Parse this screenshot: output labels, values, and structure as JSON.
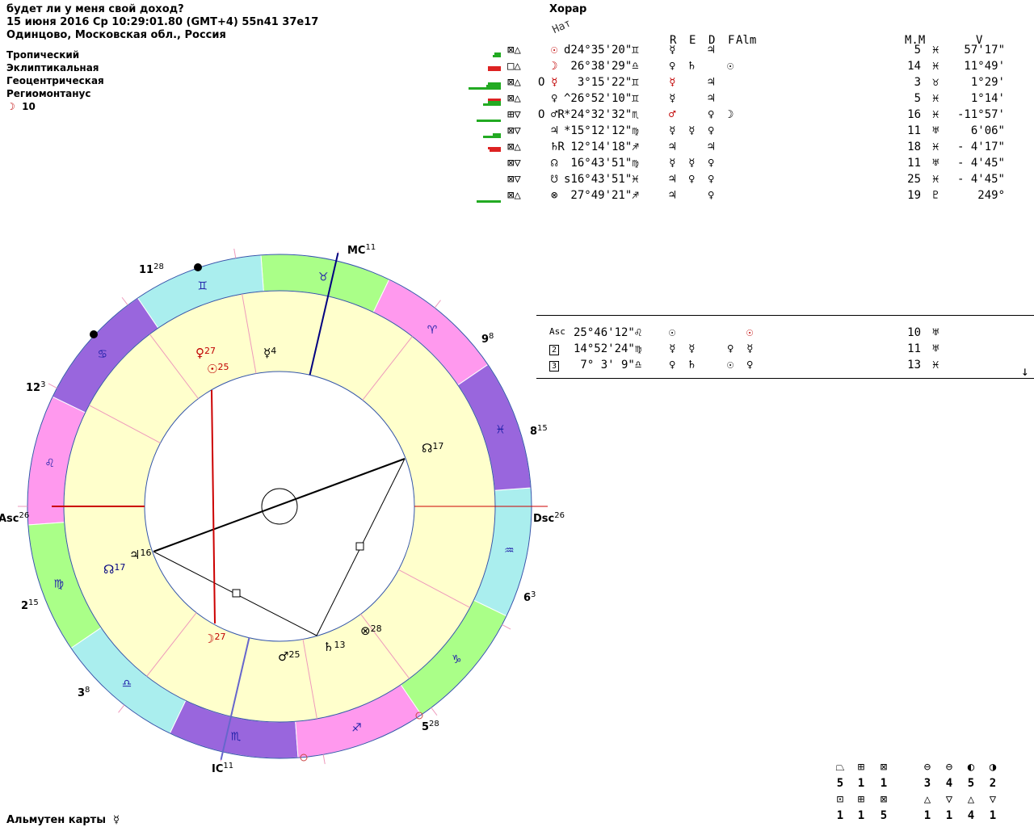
{
  "header": {
    "question": "будет ли у меня свой доход?",
    "datetime": "15 июня 2016  Ср  10:29:01.80 (GMT+4) 55n41  37e17",
    "place": "Одинцово, Московская обл., Россия"
  },
  "system": {
    "zodiac": "Тропический",
    "coords": "Эклиптикальная",
    "center": "Геоцентрическая",
    "houses": "Региомонтанус",
    "moon_glyph": "☽",
    "moon_value": "10"
  },
  "table": {
    "title": "Хорар",
    "nat_label": "Нат",
    "col_r": "R",
    "col_e": "E",
    "col_d": "D",
    "col_f": "F",
    "col_alm": "Alm",
    "col_mm": "M.M",
    "col_v": "V",
    "rows": [
      {
        "asp": "⊠△",
        "o": "",
        "glyph": "☉",
        "pos": "d24°35'20\"♊",
        "r": "☿",
        "e": "",
        "d": "♃",
        "f": "",
        "alm": "",
        "mm": "5",
        "vsign": "♓",
        "v": "57'17\""
      },
      {
        "asp": "□△",
        "o": "",
        "glyph": "☽",
        "pos": " 26°38'29\"♎",
        "r": "♀",
        "e": "♄",
        "d": "",
        "f": "☉",
        "alm": "",
        "mm": "14",
        "vsign": "♓",
        "v": "11°49'"
      },
      {
        "asp": "⊠△",
        "o": "O",
        "glyph": "☿",
        "pos": "  3°15'22\"♊",
        "r": "☿",
        "e": "",
        "d": "♃",
        "f": "",
        "alm": "",
        "mm": "3",
        "vsign": "♉",
        "v": "1°29'"
      },
      {
        "asp": "⊠△",
        "o": "",
        "glyph": "♀",
        "pos": "^26°52'10\"♊",
        "r": "☿",
        "e": "",
        "d": "♃",
        "f": "",
        "alm": "",
        "mm": "5",
        "vsign": "♓",
        "v": "1°14'"
      },
      {
        "asp": "⊞▽",
        "o": "O",
        "glyph": "♂R",
        "pos": "*24°32'32\"♏",
        "r": "♂",
        "e": "",
        "d": "♀",
        "f": "☽",
        "alm": "",
        "mm": "16",
        "vsign": "♓",
        "v": "-11°57'"
      },
      {
        "asp": "⊠▽",
        "o": "",
        "glyph": "♃",
        "pos": "*15°12'12\"♍",
        "r": "☿",
        "e": "☿",
        "d": "♀",
        "f": "",
        "alm": "",
        "mm": "11",
        "vsign": "♅",
        "v": "6'06\""
      },
      {
        "asp": "⊠△",
        "o": "",
        "glyph": "♄R",
        "pos": " 12°14'18\"♐",
        "r": "♃",
        "e": "",
        "d": "♃",
        "f": "",
        "alm": "",
        "mm": "18",
        "vsign": "♓",
        "v": "- 4'17\""
      },
      {
        "asp": "⊠▽",
        "o": "",
        "glyph": "☊",
        "pos": " 16°43'51\"♍",
        "r": "☿",
        "e": "☿",
        "d": "♀",
        "f": "",
        "alm": "",
        "mm": "11",
        "vsign": "♅",
        "v": "- 4'45\""
      },
      {
        "asp": "⊠▽",
        "o": "",
        "glyph": "☋",
        "pos": "s16°43'51\"♓",
        "r": "♃",
        "e": "♀",
        "d": "♀",
        "f": "",
        "alm": "",
        "mm": "25",
        "vsign": "♓",
        "v": "- 4'45\""
      },
      {
        "asp": "⊠△",
        "o": "",
        "glyph": "⊗",
        "pos": " 27°49'21\"♐",
        "r": "♃",
        "e": "",
        "d": "♀",
        "f": "",
        "alm": "",
        "mm": "19",
        "vsign": "♇",
        "v": "249°"
      }
    ],
    "cusps": [
      {
        "label": "Asc",
        "pos": "25°46'12\"♌",
        "r": "☉",
        "e": "",
        "d": "",
        "f": "☉",
        "mm": "10",
        "vsign": "♅"
      },
      {
        "label": "2",
        "pos": "14°52'24\"♍",
        "r": "☿",
        "e": "☿",
        "d": "♀",
        "f": "☿",
        "mm": "11",
        "vsign": "♅"
      },
      {
        "label": "3",
        "pos": " 7° 3' 9\"♎",
        "r": "♀",
        "e": "♄",
        "d": "☉",
        "f": "♀",
        "mm": "13",
        "vsign": "♓"
      }
    ],
    "arrow": "↓"
  },
  "bars": [
    {
      "green": [
        10,
        8
      ],
      "red": []
    },
    {
      "green": [],
      "red": [
        16,
        16
      ]
    },
    {
      "green": [
        40,
        18,
        16
      ],
      "red": []
    },
    {
      "green": [
        22,
        16
      ],
      "red": [
        16
      ]
    },
    {
      "green": [
        30
      ],
      "red": []
    },
    {
      "green": [
        22,
        10
      ],
      "red": []
    },
    {
      "green": [],
      "red": [
        16,
        14
      ]
    },
    {
      "green": [],
      "red": []
    },
    {
      "green": [],
      "red": []
    },
    {
      "green": [
        30
      ],
      "red": []
    }
  ],
  "wheel": {
    "house_labels": [
      {
        "name": "MC",
        "sup": "11"
      },
      {
        "name": "11",
        "sup": "28"
      },
      {
        "name": "9",
        "sup": "8"
      },
      {
        "name": "12",
        "sup": "3"
      },
      {
        "name": "8",
        "sup": "15"
      },
      {
        "name": "Asc",
        "sup": "26"
      },
      {
        "name": "Dsc",
        "sup": "26"
      },
      {
        "name": "2",
        "sup": "15"
      },
      {
        "name": "6",
        "sup": "3"
      },
      {
        "name": "3",
        "sup": "8"
      },
      {
        "name": "IC",
        "sup": "11"
      },
      {
        "name": "5",
        "sup": "28"
      }
    ],
    "planets": [
      {
        "glyph": "♀",
        "deg": "27",
        "color": "#c00000"
      },
      {
        "glyph": "☉",
        "deg": "25",
        "color": "#c00000"
      },
      {
        "glyph": "☿",
        "deg": "4",
        "color": "#000"
      },
      {
        "glyph": "☊",
        "deg": "17",
        "color": "#000"
      },
      {
        "glyph": "♃",
        "deg": "16",
        "color": "#000"
      },
      {
        "glyph": "☊",
        "deg": "17",
        "color": "#000080"
      },
      {
        "glyph": "☽",
        "deg": "27",
        "color": "#c00000"
      },
      {
        "glyph": "♂",
        "deg": "25",
        "color": "#000"
      },
      {
        "glyph": "♄",
        "deg": "13",
        "color": "#000"
      },
      {
        "glyph": "⊗",
        "deg": "28",
        "color": "#000"
      }
    ],
    "signs": [
      "♌",
      "♋",
      "♊",
      "♉",
      "♈",
      "♓",
      "♒",
      "♑",
      "♐",
      "♏",
      "♎",
      "♍"
    ],
    "sign_colors": {
      "fire": "#ff99ee",
      "earth": "#aaff88",
      "air": "#aaeeee",
      "water": "#9966dd"
    }
  },
  "almuten": {
    "label": "Альмутен карты",
    "glyph": "☿"
  },
  "stats": {
    "row1_icons": [
      "⏢",
      "⊞",
      "⊠",
      "⊖",
      "⊖",
      "◐",
      "◑"
    ],
    "row1_vals": [
      "5",
      "1",
      "1",
      "3",
      "4",
      "5",
      "2"
    ],
    "row2_icons": [
      "⊡",
      "⊞",
      "⊠",
      "△",
      "▽",
      "△",
      "▽"
    ],
    "row2_vals": [
      "1",
      "1",
      "5",
      "1",
      "1",
      "4",
      "1"
    ]
  }
}
